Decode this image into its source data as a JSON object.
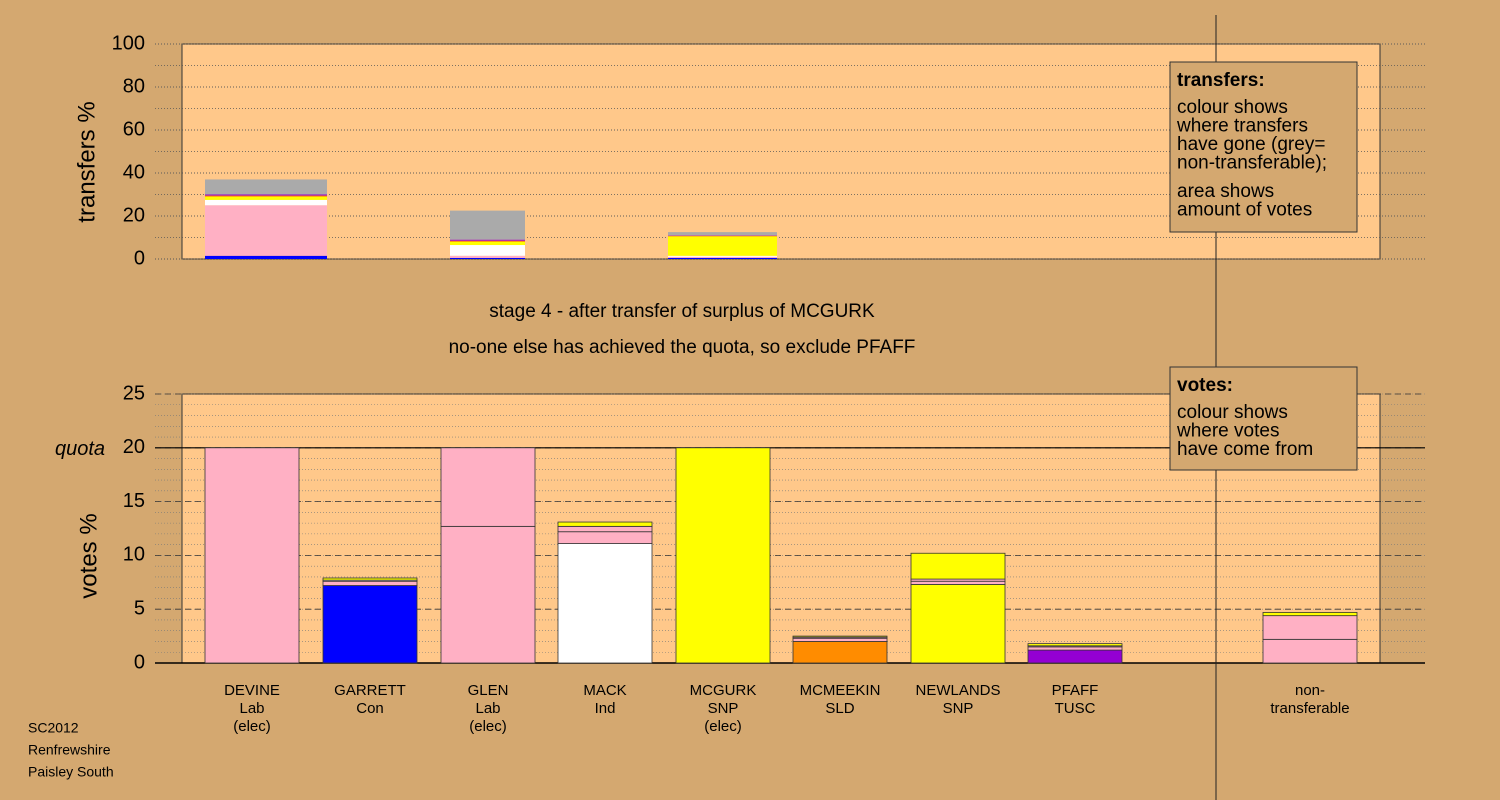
{
  "chart_data": [
    {
      "type": "stacked-bar",
      "ylabel": "transfers %",
      "ylim": [
        0,
        100
      ],
      "yticks": [
        0,
        20,
        40,
        60,
        80,
        100
      ],
      "minor_grid": 10,
      "series": [
        {
          "color": "#0000ff",
          "values": [
            1.5,
            0.5,
            0.5
          ]
        },
        {
          "color": "#ffb0c4",
          "values": [
            23.5,
            1,
            0.5
          ]
        },
        {
          "color": "#ffffff",
          "values": [
            2.5,
            5,
            0.5
          ]
        },
        {
          "color": "#ffff00",
          "values": [
            1.5,
            1.5,
            9
          ]
        },
        {
          "color": "#ff8c00",
          "values": [
            0.5,
            0.5,
            0.3
          ]
        },
        {
          "color": "#9400d3",
          "values": [
            0.5,
            0.5,
            0.2
          ]
        },
        {
          "color": "#aaaaaa",
          "values": [
            7,
            13.5,
            1.5
          ]
        }
      ],
      "note": {
        "title": "transfers:",
        "lines": [
          "colour shows",
          "where transfers",
          "have gone (grey=",
          "non-transferable);"
        ],
        "lines2": [
          "area shows",
          "amount of votes"
        ]
      }
    },
    {
      "type": "stacked-bar",
      "ylabel": "votes %",
      "ylim": [
        0,
        25
      ],
      "yticks": [
        0,
        5,
        10,
        15,
        20,
        25
      ],
      "minor_grid": 1,
      "quota": {
        "value": 20,
        "label": "quota"
      },
      "stage": [
        "stage 4 - after transfer of surplus of MCGURK",
        "no-one else has achieved the quota, so exclude PFAFF"
      ],
      "categories": [
        [
          "DEVINE",
          "Lab",
          "(elec)"
        ],
        [
          "GARRETT",
          "Con"
        ],
        [
          "GLEN",
          "Lab",
          "(elec)"
        ],
        [
          "MACK",
          "Ind"
        ],
        [
          "MCGURK",
          "SNP",
          "(elec)"
        ],
        [
          "MCMEEKIN",
          "SLD"
        ],
        [
          "NEWLANDS",
          "SNP"
        ],
        [
          "PFAFF",
          "TUSC"
        ],
        [
          "non-",
          "transferable"
        ]
      ],
      "stacks": [
        [
          {
            "color": "#ffb0c4",
            "value": 20
          }
        ],
        [
          {
            "color": "#0000ff",
            "value": 7.2
          },
          {
            "color": "#ffb0c4",
            "value": 0.4
          },
          {
            "color": "#ffffff",
            "value": 0.1
          },
          {
            "color": "#ffff00",
            "value": 0.2
          }
        ],
        [
          {
            "color": "#ffb0c4",
            "value": 12.7
          },
          {
            "color": "#ffb0c4",
            "value": 7.3
          }
        ],
        [
          {
            "color": "#ffffff",
            "value": 11.1
          },
          {
            "color": "#ffb0c4",
            "value": 1.1
          },
          {
            "color": "#ffb0c4",
            "value": 0.5
          },
          {
            "color": "#ffff00",
            "value": 0.4
          }
        ],
        [
          {
            "color": "#ffff00",
            "value": 20
          }
        ],
        [
          {
            "color": "#ff8c00",
            "value": 2
          },
          {
            "color": "#ffb0c4",
            "value": 0.3
          },
          {
            "color": "#ffb0c4",
            "value": 0.1
          },
          {
            "color": "#ffff00",
            "value": 0.1
          }
        ],
        [
          {
            "color": "#ffff00",
            "value": 7.3
          },
          {
            "color": "#ffb0c4",
            "value": 0.3
          },
          {
            "color": "#ffb0c4",
            "value": 0.2
          },
          {
            "color": "#ffff00",
            "value": 2.4
          }
        ],
        [
          {
            "color": "#9400d3",
            "value": 1.2
          },
          {
            "color": "#ffb0c4",
            "value": 0.3
          },
          {
            "color": "#ffb0c4",
            "value": 0.1
          },
          {
            "color": "#ffff00",
            "value": 0.2
          }
        ],
        [
          {
            "color": "#ffb0c4",
            "value": 2.2
          },
          {
            "color": "#ffb0c4",
            "value": 2.2
          },
          {
            "color": "#ffff00",
            "value": 0.3
          }
        ]
      ],
      "note": {
        "title": "votes:",
        "lines": [
          "colour shows",
          "where votes",
          "have come from"
        ]
      }
    },
    {
      "type": "caption",
      "lines": [
        "SC2012",
        "Renfrewshire",
        "Paisley South"
      ]
    }
  ]
}
